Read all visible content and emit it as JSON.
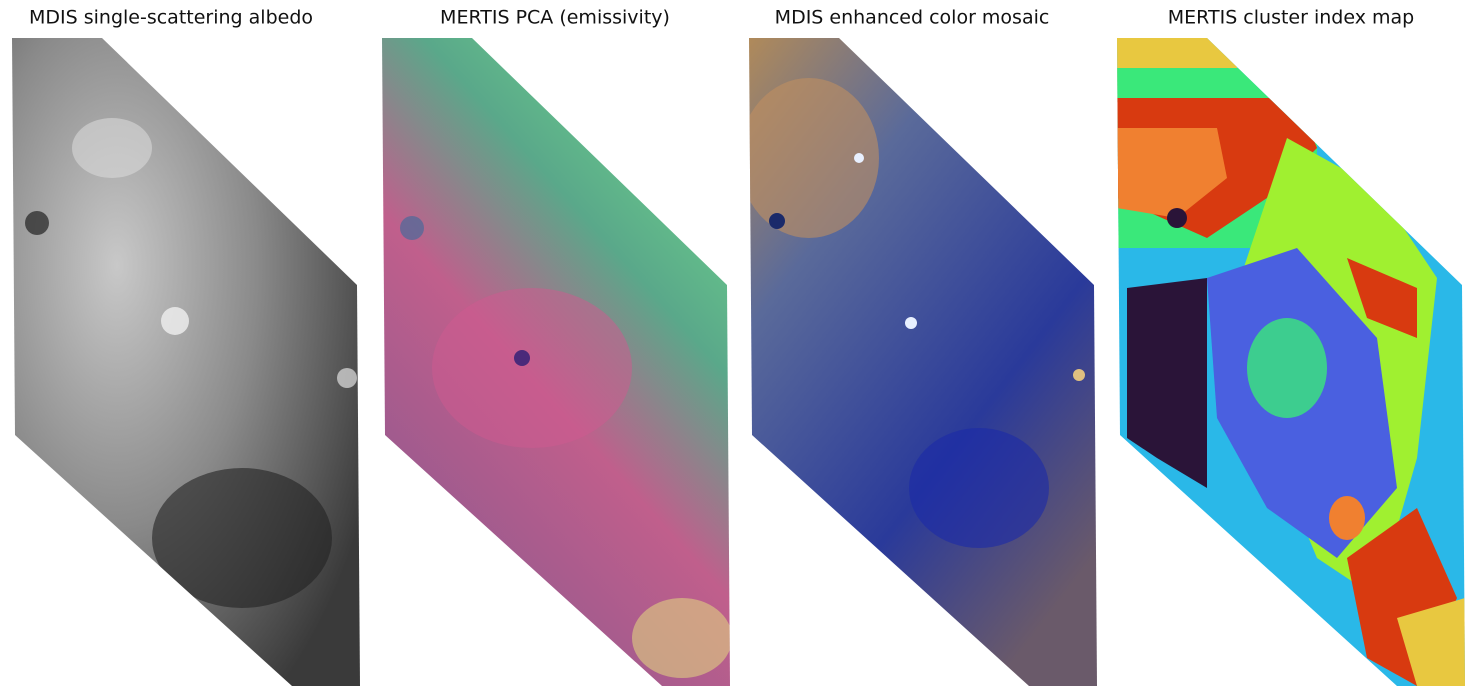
{
  "panels": [
    {
      "title": "MDIS single-scattering albedo"
    },
    {
      "title": "MERTIS PCA (emissivity)"
    },
    {
      "title": "MDIS enhanced color mosaic"
    },
    {
      "title": "MERTIS cluster index map"
    }
  ]
}
